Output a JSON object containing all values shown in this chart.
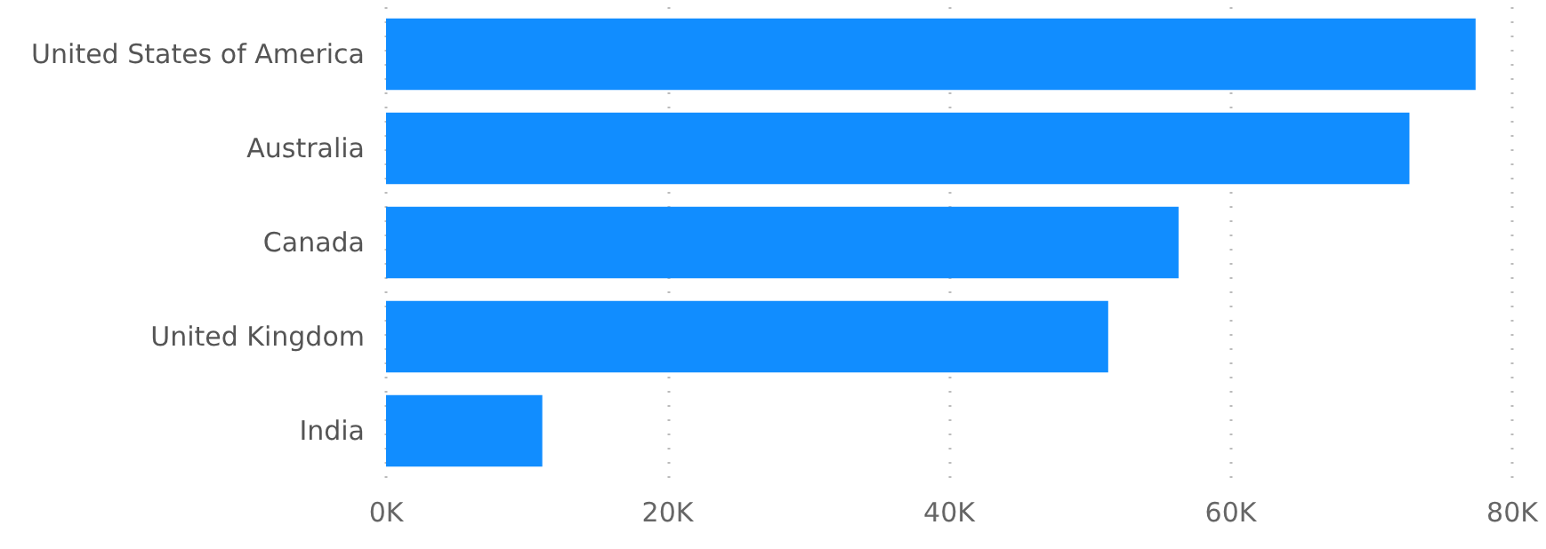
{
  "chart_data": {
    "type": "bar",
    "orientation": "horizontal",
    "categories": [
      "United States of America",
      "Australia",
      "Canada",
      "United Kingdom",
      "India"
    ],
    "values": [
      77.4,
      72.7,
      56.3,
      51.3,
      11.1
    ],
    "color": "#118dff",
    "xlim": [
      0,
      80
    ],
    "xticks": [
      {
        "value": 0,
        "label": "0K"
      },
      {
        "value": 20,
        "label": "20K"
      },
      {
        "value": 40,
        "label": "40K"
      },
      {
        "value": 60,
        "label": "60K"
      },
      {
        "value": 80,
        "label": "80K"
      }
    ],
    "grid": "x"
  }
}
